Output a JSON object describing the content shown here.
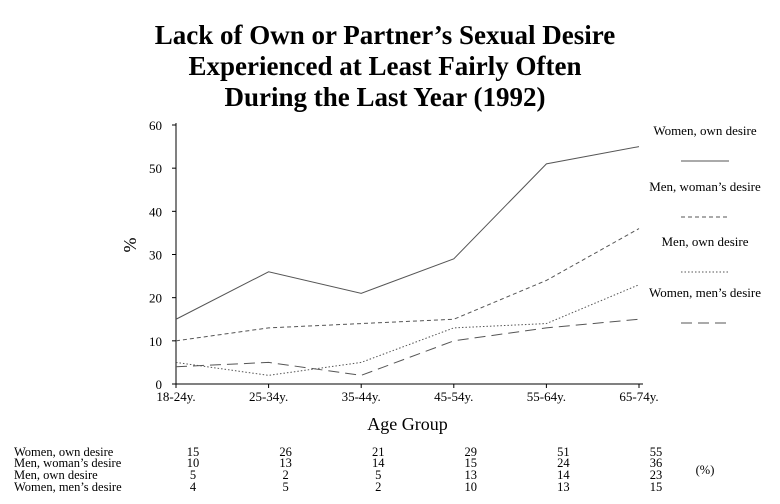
{
  "chart_data": {
    "type": "line",
    "title_lines": [
      "Lack of Own or Partner’s Sexual Desire",
      "Experienced at Least Fairly Often",
      "During the Last Year (1992)"
    ],
    "xlabel": "Age Group",
    "ylabel": "%",
    "ylim": [
      0,
      60
    ],
    "yticks": [
      0,
      10,
      20,
      30,
      40,
      50,
      60
    ],
    "categories": [
      "18-24y.",
      "25-34y.",
      "35-44y.",
      "45-54y.",
      "55-64y.",
      "65-74y."
    ],
    "series": [
      {
        "name": "Women, own desire",
        "values": [
          15,
          26,
          21,
          29,
          51,
          55
        ],
        "dash": "solid"
      },
      {
        "name": "Men, woman’s desire",
        "values": [
          10,
          13,
          14,
          15,
          24,
          36
        ],
        "dash": "dashed"
      },
      {
        "name": "Men, own desire",
        "values": [
          5,
          2,
          5,
          13,
          14,
          23
        ],
        "dash": "dotted"
      },
      {
        "name": "Women, men’s desire",
        "values": [
          4,
          5,
          2,
          10,
          13,
          15
        ],
        "dash": "longdash"
      }
    ],
    "table_unit": "(%)",
    "grid": false,
    "legend_position": "right",
    "line_color": "#555555"
  }
}
